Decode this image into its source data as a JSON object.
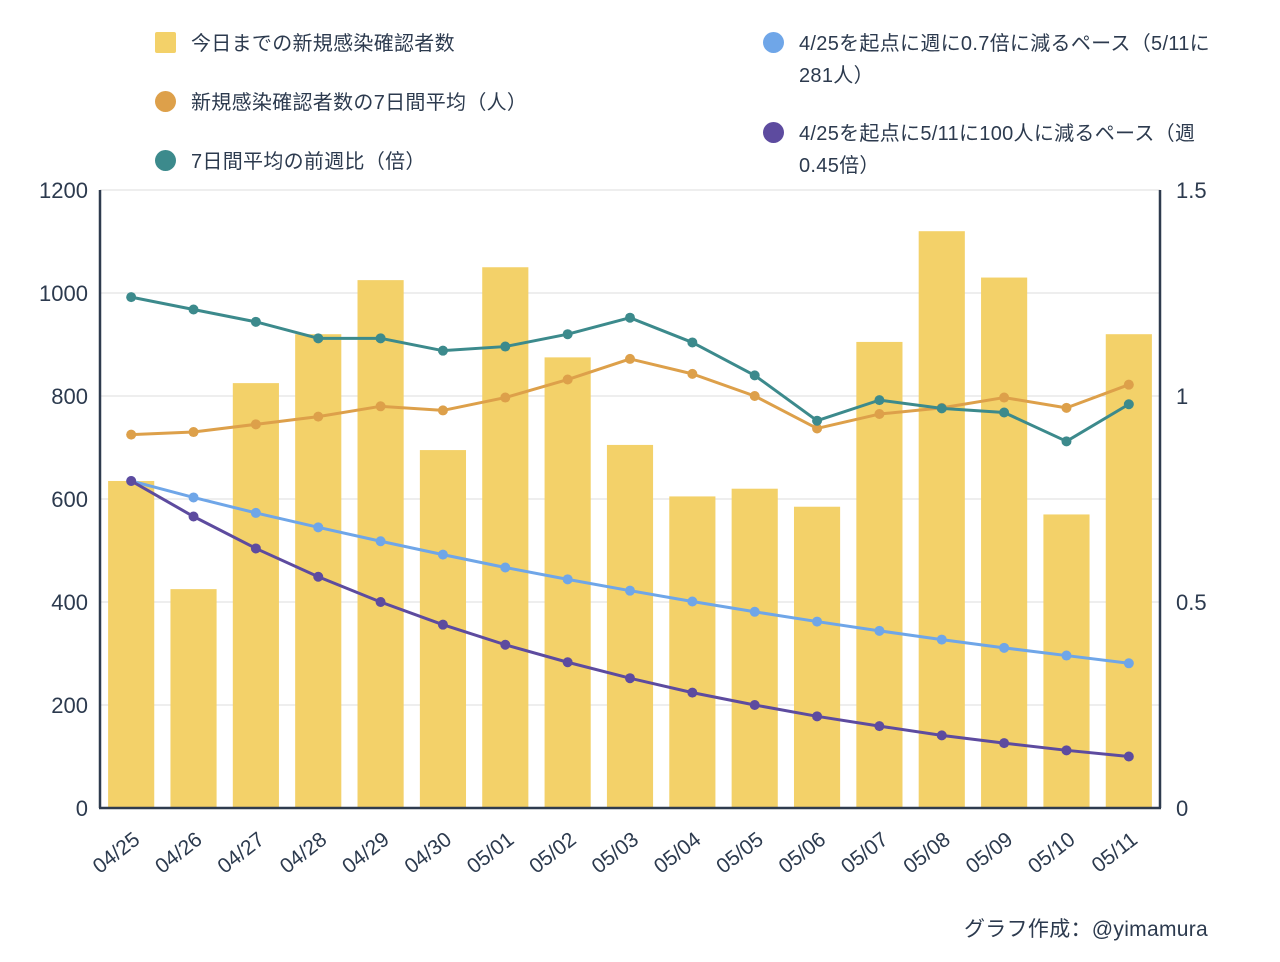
{
  "legend": {
    "bars": "今日までの新規感染確認者数",
    "avg7": "新規感染確認者数の7日間平均（人）",
    "ratio": "7日間平均の前週比（倍）",
    "pace07": "4/25を起点に週に0.7倍に減るペース（5/11に281人）",
    "pace100": "4/25を起点に5/11に100人に減るペース（週0.45倍）"
  },
  "credit": "グラフ作成：@yimamura",
  "colors": {
    "bar": "#F3D169",
    "avg": "#DDA04A",
    "ratio": "#3C8A8C",
    "pace07": "#6FA6E8",
    "pace100": "#5D4B9F",
    "text": "#2C3A4E",
    "grid": "#DCDCDC",
    "axis": "#2E3B4E"
  },
  "chart_data": {
    "type": "bar",
    "categories": [
      "04/25",
      "04/26",
      "04/27",
      "04/28",
      "04/29",
      "04/30",
      "05/01",
      "05/02",
      "05/03",
      "05/04",
      "05/05",
      "05/06",
      "05/07",
      "05/08",
      "05/09",
      "05/10",
      "05/11"
    ],
    "series": [
      {
        "name": "今日までの新規感染確認者数",
        "type": "bar",
        "axis": "left",
        "color": "#F3D169",
        "values": [
          635,
          425,
          825,
          920,
          1025,
          695,
          1050,
          875,
          705,
          605,
          620,
          585,
          905,
          1120,
          1030,
          570,
          920
        ]
      },
      {
        "name": "新規感染確認者数の7日間平均（人）",
        "type": "line",
        "axis": "left",
        "color": "#DDA04A",
        "values": [
          725,
          730,
          745,
          760,
          780,
          772,
          797,
          832,
          872,
          843,
          800,
          737,
          765,
          777,
          797,
          777,
          822
        ]
      },
      {
        "name": "7日間平均の前週比（倍）",
        "type": "line",
        "axis": "right",
        "color": "#3C8A8C",
        "values": [
          1.24,
          1.21,
          1.18,
          1.14,
          1.14,
          1.11,
          1.12,
          1.15,
          1.19,
          1.13,
          1.05,
          0.94,
          0.99,
          0.97,
          0.96,
          0.89,
          0.98
        ]
      },
      {
        "name": "4/25を起点に週に0.7倍に減るペース（5/11に281人）",
        "type": "line",
        "axis": "left",
        "color": "#6FA6E8",
        "values": [
          635,
          603,
          573,
          545,
          518,
          492,
          467,
          444,
          422,
          401,
          381,
          362,
          344,
          327,
          311,
          296,
          281
        ]
      },
      {
        "name": "4/25を起点に5/11に100人に減るペース（週0.45倍）",
        "type": "line",
        "axis": "left",
        "color": "#5D4B9F",
        "values": [
          635,
          566,
          504,
          449,
          400,
          356,
          317,
          283,
          252,
          224,
          200,
          178,
          159,
          141,
          126,
          112,
          100
        ]
      }
    ],
    "left_axis": {
      "min": 0,
      "max": 1200,
      "ticks": [
        0,
        200,
        400,
        600,
        800,
        1000,
        1200
      ],
      "tick_labels": [
        "0",
        "200",
        "400",
        "600",
        "800",
        "1000",
        "1200"
      ]
    },
    "right_axis": {
      "min": 0,
      "max": 1.5,
      "ticks": [
        0,
        0.5,
        1,
        1.5
      ],
      "tick_labels": [
        "0",
        "0.5",
        "1",
        "1.5"
      ]
    },
    "grid": true,
    "title": "",
    "xlabel": "",
    "ylabel": ""
  }
}
